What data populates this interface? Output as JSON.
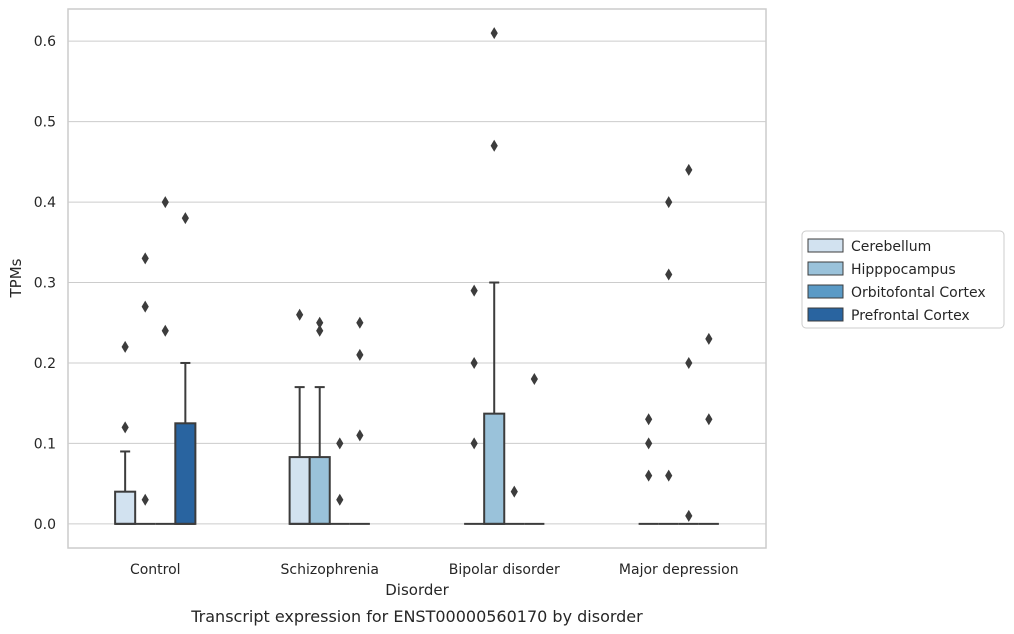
{
  "chart_data": {
    "type": "box",
    "caption": "Transcript expression for ENST00000560170 by disorder",
    "xlabel": "Disorder",
    "ylabel": "TPMs",
    "ylim": [
      -0.03,
      0.64
    ],
    "yticks": [
      "0.0",
      "0.1",
      "0.2",
      "0.3",
      "0.4",
      "0.5",
      "0.6"
    ],
    "grid": "horizontal",
    "legend_position": "right",
    "categories": [
      "Control",
      "Schizophrenia",
      "Bipolar disorder",
      "Major depression"
    ],
    "series": [
      {
        "name": "Cerebellum",
        "color": "#d2e2f0",
        "boxes": [
          {
            "q1": 0.0,
            "median": 0.0,
            "q3": 0.04,
            "whisker_low": 0.0,
            "whisker_high": 0.09,
            "outliers": [
              0.12,
              0.22
            ]
          },
          {
            "q1": 0.0,
            "median": 0.0,
            "q3": 0.083,
            "whisker_low": 0.0,
            "whisker_high": 0.17,
            "outliers": [
              0.26
            ]
          },
          {
            "q1": 0.0,
            "median": 0.0,
            "q3": 0.0,
            "whisker_low": 0.0,
            "whisker_high": 0.0,
            "outliers": [
              0.1,
              0.2,
              0.29
            ]
          },
          {
            "q1": 0.0,
            "median": 0.0,
            "q3": 0.0,
            "whisker_low": 0.0,
            "whisker_high": 0.0,
            "outliers": [
              0.06,
              0.1,
              0.13
            ]
          }
        ]
      },
      {
        "name": "Hipppocampus",
        "color": "#9ac2da",
        "boxes": [
          {
            "q1": 0.0,
            "median": 0.0,
            "q3": 0.0,
            "whisker_low": 0.0,
            "whisker_high": 0.0,
            "outliers": [
              0.03,
              0.27,
              0.33
            ]
          },
          {
            "q1": 0.0,
            "median": 0.0,
            "q3": 0.083,
            "whisker_low": 0.0,
            "whisker_high": 0.17,
            "outliers": [
              0.24,
              0.25
            ]
          },
          {
            "q1": 0.0,
            "median": 0.0,
            "q3": 0.137,
            "whisker_low": 0.0,
            "whisker_high": 0.3,
            "outliers": [
              0.47,
              0.61
            ]
          },
          {
            "q1": 0.0,
            "median": 0.0,
            "q3": 0.0,
            "whisker_low": 0.0,
            "whisker_high": 0.0,
            "outliers": [
              0.06,
              0.31,
              0.4
            ]
          }
        ]
      },
      {
        "name": "Orbitofontal Cortex",
        "color": "#5a9ac6",
        "boxes": [
          {
            "q1": 0.0,
            "median": 0.0,
            "q3": 0.0,
            "whisker_low": 0.0,
            "whisker_high": 0.0,
            "outliers": [
              0.24,
              0.4
            ]
          },
          {
            "q1": 0.0,
            "median": 0.0,
            "q3": 0.0,
            "whisker_low": 0.0,
            "whisker_high": 0.0,
            "outliers": [
              0.03,
              0.1
            ]
          },
          {
            "q1": 0.0,
            "median": 0.0,
            "q3": 0.0,
            "whisker_low": 0.0,
            "whisker_high": 0.0,
            "outliers": [
              0.04
            ]
          },
          {
            "q1": 0.0,
            "median": 0.0,
            "q3": 0.0,
            "whisker_low": 0.0,
            "whisker_high": 0.0,
            "outliers": [
              0.01,
              0.2,
              0.44
            ]
          }
        ]
      },
      {
        "name": "Prefrontal Cortex",
        "color": "#2964a0",
        "boxes": [
          {
            "q1": 0.0,
            "median": 0.0,
            "q3": 0.125,
            "whisker_low": 0.0,
            "whisker_high": 0.2,
            "outliers": [
              0.38
            ]
          },
          {
            "q1": 0.0,
            "median": 0.0,
            "q3": 0.0,
            "whisker_low": 0.0,
            "whisker_high": 0.0,
            "outliers": [
              0.11,
              0.21,
              0.25
            ]
          },
          {
            "q1": 0.0,
            "median": 0.0,
            "q3": 0.0,
            "whisker_low": 0.0,
            "whisker_high": 0.0,
            "outliers": [
              0.18
            ]
          },
          {
            "q1": 0.0,
            "median": 0.0,
            "q3": 0.0,
            "whisker_low": 0.0,
            "whisker_high": 0.0,
            "outliers": [
              0.13,
              0.23
            ]
          }
        ]
      }
    ]
  }
}
